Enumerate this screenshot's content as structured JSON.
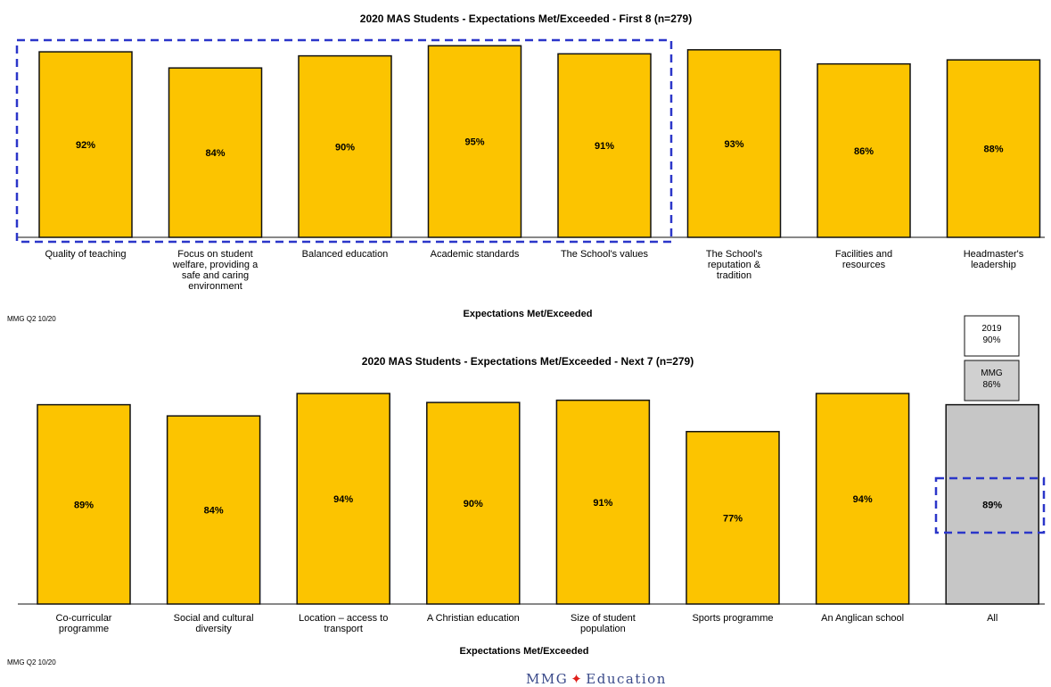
{
  "colors": {
    "bar": "#fcc400",
    "bar_all": "#c6c6c6",
    "highlight_box": "#2b36c9",
    "footer_text": "#3a4a8a",
    "footer_star": "#e0201b"
  },
  "chart_data": [
    {
      "type": "bar",
      "title": "2020 MAS Students - Expectations Met/Exceeded  - First 8 (n=279)",
      "xlabel": "Expectations Met/Exceeded",
      "ylabel": "",
      "categories": [
        "Quality of teaching",
        "Focus on student welfare, providing a safe and caring environment",
        "Balanced education",
        "Academic standards",
        "The School's values",
        "The School's reputation & tradition",
        "Facilities and resources",
        "Headmaster's leadership"
      ],
      "values": [
        92,
        84,
        90,
        95,
        91,
        93,
        86,
        88
      ],
      "value_labels": [
        "92%",
        "84%",
        "90%",
        "95%",
        "91%",
        "93%",
        "86%",
        "88%"
      ],
      "highlighted": [
        0,
        1,
        2,
        3,
        4
      ],
      "ylim": [
        0,
        100
      ],
      "grid": false,
      "source_note": "MMG Q2 10/20"
    },
    {
      "type": "bar",
      "title": "2020 MAS Students - Expectations Met/Exceeded  - Next 7 (n=279)",
      "xlabel": "Expectations Met/Exceeded",
      "ylabel": "",
      "categories": [
        "Co-curricular programme",
        "Social and cultural diversity",
        "Location – access to transport",
        "A Christian education",
        "Size of student population",
        "Sports programme",
        "An Anglican school",
        "All"
      ],
      "values": [
        89,
        84,
        94,
        90,
        91,
        77,
        94,
        89
      ],
      "value_labels": [
        "89%",
        "84%",
        "94%",
        "90%",
        "91%",
        "77%",
        "94%",
        "89%"
      ],
      "highlighted": [
        7
      ],
      "ylim": [
        0,
        100
      ],
      "grid": false,
      "comparison_boxes": [
        {
          "lines": [
            "2019",
            "90%"
          ]
        },
        {
          "lines": [
            "MMG",
            "86%"
          ]
        }
      ],
      "source_note": "MMG Q2 10/20"
    }
  ],
  "footer": {
    "left": "MMG",
    "star": "✦",
    "right": "Education"
  }
}
